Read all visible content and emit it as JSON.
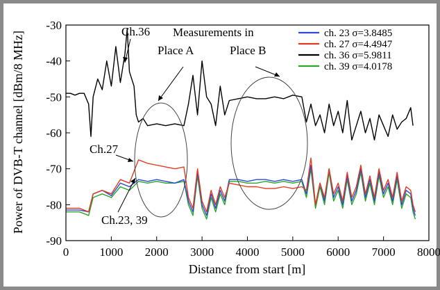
{
  "chart_data": {
    "type": "line",
    "xlabel": "Distance from start [m]",
    "ylabel": "Power of DVB-T channel [dBm/8 MHz]",
    "xlim": [
      0,
      8000
    ],
    "ylim": [
      -90,
      -30
    ],
    "x_ticks": [
      "0",
      "1000",
      "2000",
      "3000",
      "4000",
      "5000",
      "6000",
      "7000",
      "8000"
    ],
    "y_ticks": [
      "-30",
      "-40",
      "-50",
      "-60",
      "-70",
      "-80",
      "-90"
    ],
    "grid": false,
    "legend_position": "top-right",
    "series": [
      {
        "name": "ch. 23 σ=3.8485",
        "color": "#2b4bd6",
        "x": [
          0,
          300,
          500,
          600,
          800,
          1000,
          1200,
          1400,
          1600,
          1800,
          2000,
          2200,
          2400,
          2600,
          2700,
          2800,
          2900,
          3000,
          3100,
          3200,
          3300,
          3400,
          3500,
          3600,
          3800,
          4000,
          4200,
          4400,
          4600,
          4800,
          5000,
          5200,
          5300,
          5400,
          5500,
          5600,
          5700,
          5800,
          5900,
          6000,
          6100,
          6200,
          6300,
          6400,
          6500,
          6600,
          6700,
          6800,
          6900,
          7000,
          7100,
          7200,
          7300,
          7400,
          7500,
          7600,
          7650,
          7700
        ],
        "y": [
          -81.5,
          -81.5,
          -82,
          -77,
          -76,
          -77.5,
          -74,
          -75,
          -73,
          -73.5,
          -73,
          -73.5,
          -74,
          -73,
          -79,
          -82,
          -71,
          -80,
          -83,
          -77,
          -81,
          -76,
          -79,
          -73,
          -73,
          -73.5,
          -73,
          -73,
          -73.5,
          -73,
          -73.5,
          -73,
          -77,
          -69,
          -80,
          -74,
          -79,
          -70,
          -78,
          -75,
          -80,
          -72,
          -79,
          -76,
          -70,
          -78,
          -73,
          -79,
          -71,
          -77,
          -74,
          -79,
          -72,
          -80,
          -76,
          -77,
          -81,
          -83
        ]
      },
      {
        "name": "ch. 27 σ=4.4947",
        "color": "#e33a1f",
        "x": [
          0,
          300,
          500,
          600,
          800,
          1000,
          1200,
          1400,
          1600,
          1800,
          2000,
          2200,
          2400,
          2600,
          2700,
          2800,
          2900,
          3000,
          3100,
          3200,
          3300,
          3400,
          3500,
          3600,
          3800,
          4000,
          4200,
          4400,
          4600,
          4800,
          5000,
          5200,
          5300,
          5400,
          5500,
          5600,
          5700,
          5800,
          5900,
          6000,
          6100,
          6200,
          6300,
          6400,
          6500,
          6600,
          6700,
          6800,
          6900,
          7000,
          7100,
          7200,
          7300,
          7400,
          7500,
          7600,
          7650,
          7700
        ],
        "y": [
          -81,
          -81,
          -82,
          -77,
          -76,
          -77,
          -73,
          -74,
          -67.5,
          -68.5,
          -69,
          -69.5,
          -70,
          -69.5,
          -78,
          -81,
          -70,
          -79,
          -82,
          -76,
          -80,
          -75,
          -78,
          -74,
          -74.5,
          -75,
          -75,
          -75.5,
          -75.5,
          -75,
          -75.5,
          -75,
          -76,
          -67,
          -80,
          -74,
          -78,
          -70,
          -77,
          -74,
          -79,
          -71,
          -78,
          -75,
          -69,
          -77,
          -72,
          -78,
          -70,
          -76,
          -73,
          -78,
          -71,
          -79,
          -75,
          -76,
          -80,
          -82
        ]
      },
      {
        "name": "ch. 36 σ=5.9811",
        "color": "#000000",
        "x": [
          0,
          100,
          200,
          300,
          400,
          500,
          550,
          600,
          700,
          800,
          900,
          1000,
          1100,
          1200,
          1300,
          1350,
          1400,
          1500,
          1550,
          1600,
          1700,
          1800,
          2000,
          2200,
          2400,
          2600,
          2700,
          2800,
          2900,
          3000,
          3100,
          3200,
          3300,
          3400,
          3500,
          3600,
          3800,
          4000,
          4200,
          4400,
          4600,
          4800,
          5000,
          5200,
          5300,
          5400,
          5500,
          5600,
          5700,
          5800,
          5900,
          6000,
          6100,
          6200,
          6300,
          6400,
          6500,
          6600,
          6700,
          6800,
          6900,
          7000,
          7100,
          7200,
          7300,
          7400,
          7500,
          7600,
          7650
        ],
        "y": [
          -49,
          -49,
          -49.5,
          -49,
          -49,
          -52,
          -61,
          -50,
          -45,
          -48,
          -40,
          -47,
          -36,
          -46,
          -38,
          -31,
          -43,
          -47,
          -55,
          -57,
          -56,
          -58,
          -57.5,
          -58,
          -57.5,
          -58,
          -52,
          -44,
          -55,
          -40,
          -50,
          -52,
          -58,
          -47,
          -55,
          -51,
          -50.5,
          -50,
          -50.5,
          -50.5,
          -50,
          -50.5,
          -49.5,
          -50,
          -57,
          -52,
          -58,
          -55,
          -60,
          -52,
          -58,
          -54,
          -60,
          -51,
          -62,
          -58,
          -54,
          -60,
          -56,
          -62,
          -55,
          -58,
          -61,
          -55,
          -59,
          -57,
          -56,
          -53,
          -58
        ]
      },
      {
        "name": "ch. 39 σ=4.0178",
        "color": "#2aa52a",
        "x": [
          0,
          300,
          500,
          600,
          800,
          1000,
          1200,
          1400,
          1600,
          1800,
          2000,
          2200,
          2400,
          2600,
          2700,
          2800,
          2900,
          3000,
          3100,
          3200,
          3300,
          3400,
          3500,
          3600,
          3800,
          4000,
          4200,
          4400,
          4600,
          4800,
          5000,
          5200,
          5300,
          5400,
          5500,
          5600,
          5700,
          5800,
          5900,
          6000,
          6100,
          6200,
          6300,
          6400,
          6500,
          6600,
          6700,
          6800,
          6900,
          7000,
          7100,
          7200,
          7300,
          7400,
          7500,
          7600,
          7650,
          7700
        ],
        "y": [
          -82,
          -82,
          -83,
          -78,
          -77,
          -78,
          -75,
          -76,
          -73.5,
          -74,
          -73.5,
          -74,
          -74,
          -73.5,
          -80,
          -83,
          -72,
          -81,
          -84,
          -78,
          -82,
          -77,
          -80,
          -73.5,
          -73.5,
          -74,
          -74,
          -73.5,
          -74,
          -73.5,
          -74,
          -73.5,
          -78,
          -70,
          -81,
          -75,
          -80,
          -71,
          -79,
          -76,
          -81,
          -73,
          -80,
          -77,
          -71,
          -79,
          -74,
          -80,
          -72,
          -78,
          -75,
          -80,
          -73,
          -81,
          -77,
          -78,
          -82,
          -84
        ]
      }
    ],
    "annotations": [
      "Ch.36",
      "Measurements in",
      "Place A",
      "Place B",
      "Ch.27",
      "Ch.23, 39"
    ]
  }
}
